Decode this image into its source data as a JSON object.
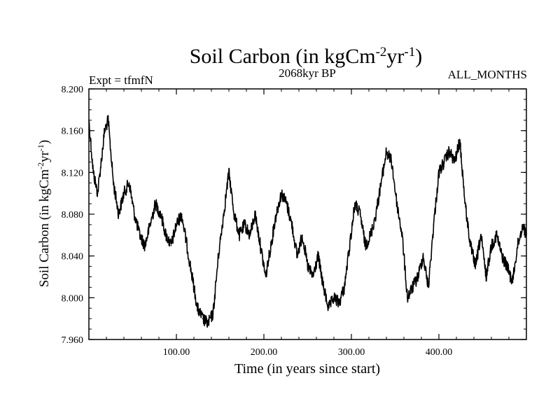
{
  "chart_data": {
    "type": "line",
    "title": "Soil Carbon (in kgCm",
    "title_sup1": "-2",
    "title_mid": "yr",
    "title_sup2": "-1",
    "title_end": ")",
    "subtitle": "2068kyr BP",
    "left_label": "Expt = tfmfN",
    "right_label": "ALL_MONTHS",
    "xlabel": "Time (in years since start)",
    "ylabel": "Soil Carbon (in kgCm",
    "ylabel_sup1": "-2",
    "ylabel_mid": "yr",
    "ylabel_sup2": "-1",
    "ylabel_end": ")",
    "xlim": [
      0,
      500
    ],
    "ylim": [
      7.96,
      8.2
    ],
    "xticks": [
      100,
      200,
      300,
      400
    ],
    "xtick_labels": [
      "100.00",
      "200.00",
      "300.00",
      "400.00"
    ],
    "yticks": [
      7.96,
      8.0,
      8.04,
      8.08,
      8.12,
      8.16,
      8.2
    ],
    "ytick_labels": [
      "7.960",
      "8.000",
      "8.040",
      "8.080",
      "8.120",
      "8.160",
      "8.200"
    ],
    "series": [
      {
        "name": "Soil Carbon",
        "x": [
          0,
          5,
          10,
          14,
          18,
          22,
          28,
          34,
          40,
          46,
          52,
          58,
          64,
          70,
          76,
          82,
          88,
          94,
          100,
          106,
          112,
          118,
          124,
          130,
          136,
          142,
          148,
          154,
          160,
          166,
          172,
          178,
          184,
          190,
          196,
          202,
          208,
          214,
          220,
          226,
          232,
          238,
          244,
          250,
          256,
          262,
          268,
          274,
          280,
          286,
          292,
          298,
          304,
          310,
          316,
          322,
          328,
          334,
          340,
          346,
          352,
          358,
          364,
          370,
          376,
          382,
          388,
          394,
          400,
          406,
          412,
          418,
          424,
          430,
          436,
          442,
          448,
          454,
          460,
          466,
          472,
          478,
          484,
          490,
          496,
          500
        ],
        "values": [
          8.17,
          8.12,
          8.1,
          8.13,
          8.16,
          8.17,
          8.11,
          8.08,
          8.1,
          8.11,
          8.08,
          8.06,
          8.05,
          8.07,
          8.09,
          8.08,
          8.06,
          8.05,
          8.07,
          8.08,
          8.05,
          8.02,
          7.99,
          7.98,
          7.975,
          7.985,
          8.04,
          8.08,
          8.12,
          8.08,
          8.06,
          8.07,
          8.06,
          8.08,
          8.05,
          8.02,
          8.05,
          8.08,
          8.1,
          8.09,
          8.07,
          8.04,
          8.06,
          8.03,
          8.02,
          8.04,
          8.01,
          7.99,
          8.0,
          7.995,
          8.01,
          8.05,
          8.09,
          8.08,
          8.05,
          8.06,
          8.08,
          8.11,
          8.14,
          8.13,
          8.09,
          8.06,
          8.0,
          8.01,
          8.02,
          8.04,
          8.01,
          8.07,
          8.12,
          8.13,
          8.14,
          8.13,
          8.15,
          8.09,
          8.05,
          8.03,
          8.06,
          8.02,
          8.05,
          8.06,
          8.04,
          8.03,
          8.015,
          8.05,
          8.07,
          8.06
        ]
      }
    ]
  }
}
